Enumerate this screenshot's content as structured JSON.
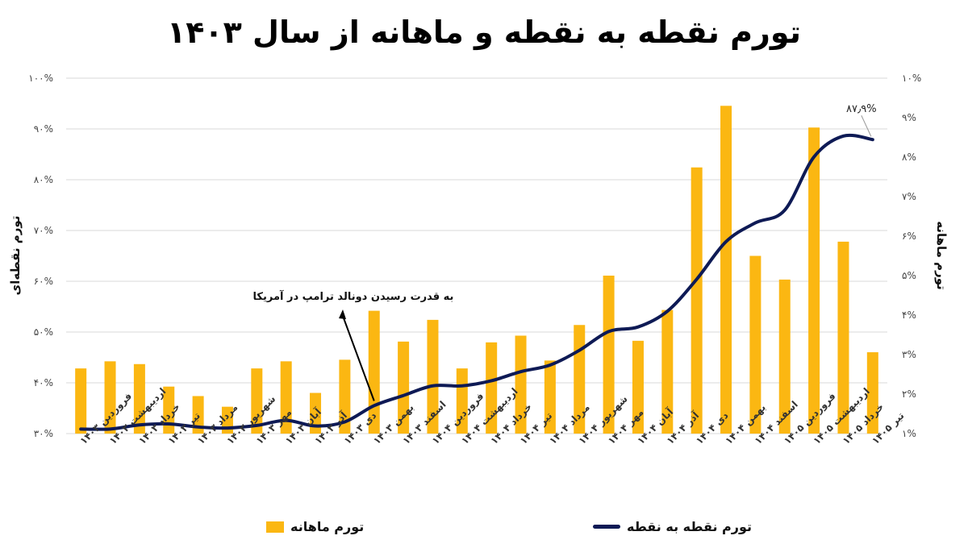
{
  "title": "تورم نقطه به نقطه و ماهانه از سال ۱۴۰۳",
  "legend": {
    "bar_label": "تورم ماهانه",
    "line_label": "تورم نقطه به نقطه"
  },
  "colors": {
    "bar": "#FBB712",
    "line": "#0E1A55",
    "grid": "#D9D9D9"
  },
  "chart_data": {
    "type": "bar",
    "title": "تورم نقطه به نقطه و ماهانه از سال ۱۴۰۳",
    "ylabel_left": "تورم نقطه‌ای",
    "ylabel_right": "تورم ماهانه",
    "ylim_left": [
      30,
      100
    ],
    "ylim_right": [
      1,
      10
    ],
    "yticks_left": [
      "۳۰%",
      "۴۰%",
      "۵۰%",
      "۶۰%",
      "۷۰%",
      "۸۰%",
      "۹۰%",
      "۱۰۰%"
    ],
    "yticks_right": [
      "۱%",
      "۲%",
      "۳%",
      "۴%",
      "۵%",
      "۶%",
      "۷%",
      "۸%",
      "۹%",
      "۱۰%"
    ],
    "grid": true,
    "legend_position": "bottom",
    "categories": [
      "فروردین ۱۴۰۳",
      "اردیبهشت ۱۴۰۳",
      "خرداد ۱۴۰۳",
      "تیر ۱۴۰۳",
      "مرداد ۱۴۰۳",
      "شهریور ۱۴۰۳",
      "مهر ۱۴۰۳",
      "آبان ۱۴۰۳",
      "آذر ۱۴۰۳",
      "دی ۱۴۰۳",
      "بهمن ۱۴۰۳",
      "اسفند ۱۴۰۳",
      "فروردین ۱۴۰۴",
      "اردیبهشت ۱۴۰۴",
      "خرداد ۱۴۰۴",
      "تیر ۱۴۰۴",
      "مرداد ۱۴۰۴",
      "شهریور ۱۴۰۴",
      "مهر ۱۴۰۴",
      "آبان ۱۴۰۴",
      "آذر ۱۴۰۴",
      "دی ۱۴۰۴",
      "بهمن ۱۴۰۴",
      "اسفند ۱۴۰۴",
      "فروردین ۱۴۰۵",
      "اردیبهشت ۱۴۰۵",
      "خرداد ۱۴۰۵",
      "تیر ۱۴۰۵"
    ],
    "series": [
      {
        "name": "تورم ماهانه",
        "type": "bar",
        "axis": "right",
        "values": [
          2.65,
          2.83,
          2.76,
          2.19,
          1.95,
          1.68,
          2.65,
          2.83,
          2.03,
          2.87,
          4.11,
          3.33,
          3.88,
          2.65,
          3.31,
          3.48,
          2.85,
          3.75,
          5.0,
          3.35,
          4.13,
          7.74,
          9.3,
          5.5,
          4.9,
          8.75,
          5.86,
          3.06
        ]
      },
      {
        "name": "تورم نقطه به نقطه",
        "type": "line",
        "axis": "left",
        "values": [
          30.9,
          30.9,
          31.7,
          31.9,
          31.3,
          31.1,
          31.6,
          32.6,
          31.5,
          32.3,
          35.5,
          37.5,
          39.4,
          39.4,
          40.4,
          42.2,
          43.5,
          46.4,
          50.1,
          51.0,
          54.1,
          60.4,
          67.8,
          71.5,
          74.0,
          84.5,
          88.6,
          87.9
        ]
      }
    ],
    "annotations": [
      {
        "text": "به قدرت رسیدن دونالد ترامپ در آمریکا",
        "target_category": "بهمن ۱۴۰۳"
      }
    ],
    "last_point_label": "۸۷٫۹%"
  }
}
